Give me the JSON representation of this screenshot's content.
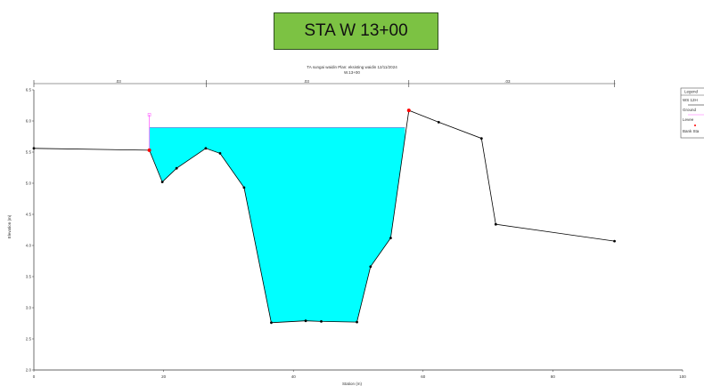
{
  "station_label": "STA W 13+00",
  "chart_data": {
    "type": "line",
    "title_line1": "TA sungai waidin    Plan: eksisting waidin    12/11/2024",
    "title_line2": "W.13+00",
    "xlabel": "Station (m)",
    "ylabel": "Elevation (m)",
    "xlim": [
      0,
      100
    ],
    "ylim": [
      2.0,
      6.5
    ],
    "x_ticks": [
      "0",
      "20",
      "40",
      "60",
      "80",
      "100"
    ],
    "y_ticks": [
      "2.0",
      "2.5",
      "3.0",
      "3.5",
      "4.0",
      "4.5",
      "5.0",
      "5.5",
      "6.0",
      "6.5"
    ],
    "ground": {
      "x": [
        0,
        17.8,
        19.8,
        22,
        26.5,
        28.7,
        32.4,
        36.6,
        41.9,
        44.3,
        49.8,
        51.9,
        55,
        57.8,
        62.4,
        69,
        71.2,
        89.5
      ],
      "y": [
        5.56,
        5.53,
        5.02,
        5.24,
        5.56,
        5.48,
        4.93,
        2.76,
        2.79,
        2.78,
        2.77,
        3.66,
        4.12,
        6.17,
        5.98,
        5.72,
        4.34,
        4.07
      ]
    },
    "water_surface": 5.89,
    "water_x_range": [
      17.8,
      57.2
    ],
    "levee": {
      "x": 17.8,
      "y_top": 6.1
    },
    "bank_points": [
      {
        "x": 17.8,
        "y": 5.53
      },
      {
        "x": 57.8,
        "y": 6.17
      }
    ],
    "roughness_labels": [
      {
        "x": 13,
        "text": ".03"
      },
      {
        "x": 42,
        "text": ".03"
      },
      {
        "x": 73,
        "text": ".03"
      }
    ],
    "legend_title": "Legend",
    "legend_entries": [
      "WS 12H",
      "Ground",
      "Levee",
      "Bank Sta"
    ],
    "colors": {
      "water": "#00ffff",
      "ground": "#000000",
      "levee": "#ff66ff",
      "bank": "#ff0000"
    }
  }
}
